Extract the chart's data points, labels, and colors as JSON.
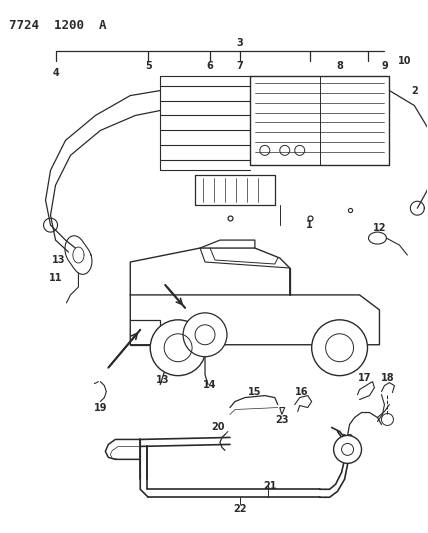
{
  "title": "7724 1200 A",
  "bg_color": "#ffffff",
  "line_color": "#2a2a2a",
  "title_fontsize": 9,
  "label_fontsize": 7,
  "fig_width": 4.28,
  "fig_height": 5.33,
  "dpi": 100
}
